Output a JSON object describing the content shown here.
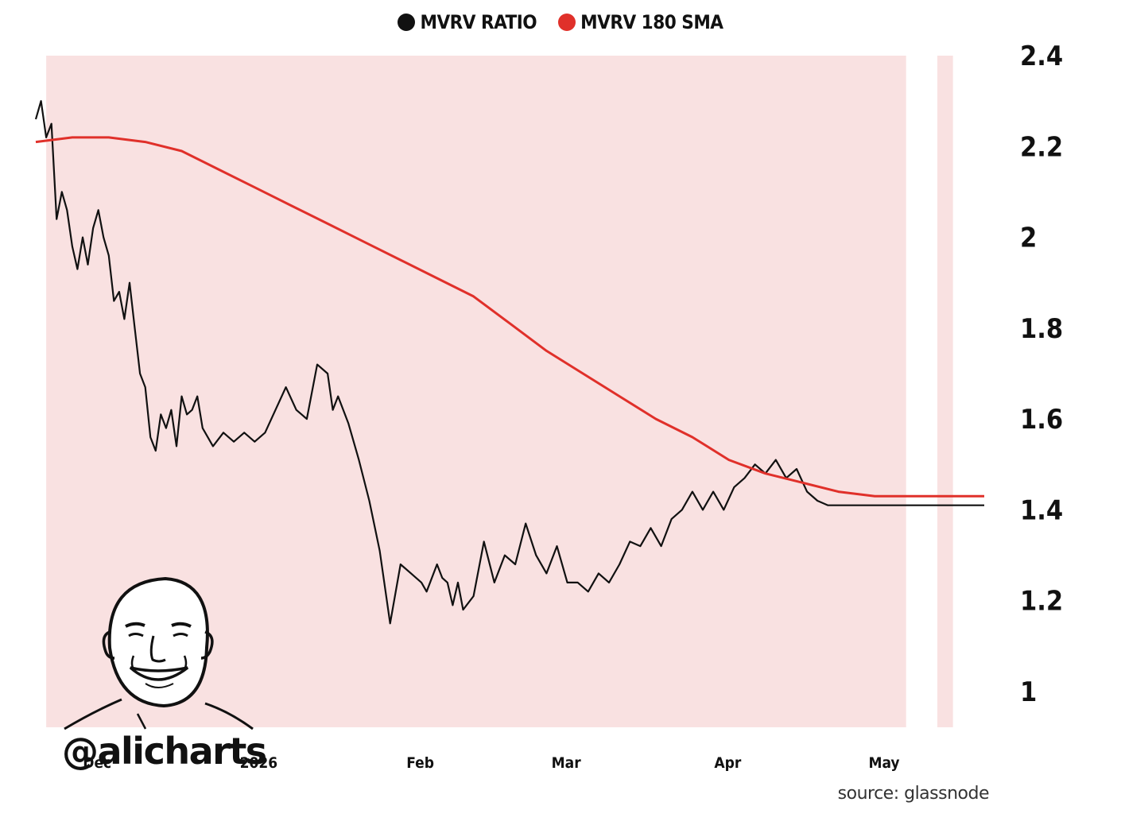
{
  "chart_data": {
    "type": "line",
    "legend": [
      {
        "label": "MVRV RATIO",
        "color": "#111111"
      },
      {
        "label": "MVRV 180 SMA",
        "color": "#e0302a"
      }
    ],
    "y_ticks": [
      "2.4",
      "2.2",
      "2",
      "1.8",
      "1.6",
      "1.4",
      "1.2",
      "1"
    ],
    "x_ticks": [
      "Dec",
      "2026",
      "Feb",
      "Mar",
      "Apr",
      "May"
    ],
    "ylim": [
      0.92,
      2.42
    ],
    "series": [
      {
        "name": "MVRV RATIO",
        "color": "#111111",
        "x": [
          "2025-11-18",
          "2025-11-19",
          "2025-11-20",
          "2025-11-21",
          "2025-11-22",
          "2025-11-23",
          "2025-11-24",
          "2025-11-25",
          "2025-11-26",
          "2025-11-27",
          "2025-11-28",
          "2025-11-29",
          "2025-11-30",
          "2025-12-01",
          "2025-12-02",
          "2025-12-03",
          "2025-12-04",
          "2025-12-05",
          "2025-12-06",
          "2025-12-07",
          "2025-12-08",
          "2025-12-09",
          "2025-12-10",
          "2025-12-11",
          "2025-12-12",
          "2025-12-13",
          "2025-12-14",
          "2025-12-15",
          "2025-12-16",
          "2025-12-17",
          "2025-12-18",
          "2025-12-19",
          "2025-12-20",
          "2025-12-22",
          "2025-12-24",
          "2025-12-26",
          "2025-12-28",
          "2025-12-30",
          "2026-01-01",
          "2026-01-03",
          "2026-01-05",
          "2026-01-07",
          "2026-01-09",
          "2026-01-11",
          "2026-01-13",
          "2026-01-14",
          "2026-01-15",
          "2026-01-17",
          "2026-01-19",
          "2026-01-21",
          "2026-01-23",
          "2026-01-25",
          "2026-01-27",
          "2026-01-29",
          "2026-01-31",
          "2026-02-01",
          "2026-02-03",
          "2026-02-04",
          "2026-02-05",
          "2026-02-06",
          "2026-02-07",
          "2026-02-08",
          "2026-02-10",
          "2026-02-12",
          "2026-02-14",
          "2026-02-16",
          "2026-02-18",
          "2026-02-20",
          "2026-02-22",
          "2026-02-24",
          "2026-02-26",
          "2026-02-28",
          "2026-03-02",
          "2026-03-04",
          "2026-03-06",
          "2026-03-08",
          "2026-03-10",
          "2026-03-12",
          "2026-03-14",
          "2026-03-16",
          "2026-03-18",
          "2026-03-20",
          "2026-03-22",
          "2026-03-24",
          "2026-03-26",
          "2026-03-28",
          "2026-03-30",
          "2026-04-01",
          "2026-04-03",
          "2026-04-05",
          "2026-04-07",
          "2026-04-09",
          "2026-04-11",
          "2026-04-13",
          "2026-04-15",
          "2026-04-17",
          "2026-04-19",
          "2026-04-21",
          "2026-04-23",
          "2026-04-25",
          "2026-04-27",
          "2026-04-29",
          "2026-05-01",
          "2026-05-03",
          "2026-05-05",
          "2026-05-07",
          "2026-05-09",
          "2026-05-11",
          "2026-05-13",
          "2026-05-15",
          "2026-05-17",
          "2026-05-19"
        ],
        "values": [
          2.26,
          2.3,
          2.22,
          2.25,
          2.04,
          2.1,
          2.06,
          1.98,
          1.93,
          2.0,
          1.94,
          2.02,
          2.06,
          2.0,
          1.96,
          1.86,
          1.88,
          1.82,
          1.9,
          1.8,
          1.7,
          1.67,
          1.56,
          1.53,
          1.61,
          1.58,
          1.62,
          1.54,
          1.65,
          1.61,
          1.62,
          1.65,
          1.58,
          1.54,
          1.57,
          1.55,
          1.57,
          1.55,
          1.57,
          1.62,
          1.67,
          1.62,
          1.6,
          1.72,
          1.7,
          1.62,
          1.65,
          1.59,
          1.51,
          1.42,
          1.31,
          1.15,
          1.28,
          1.26,
          1.24,
          1.22,
          1.28,
          1.25,
          1.24,
          1.19,
          1.24,
          1.18,
          1.21,
          1.33,
          1.24,
          1.3,
          1.28,
          1.37,
          1.3,
          1.26,
          1.32,
          1.24,
          1.24,
          1.22,
          1.26,
          1.24,
          1.28,
          1.33,
          1.32,
          1.36,
          1.32,
          1.38,
          1.4,
          1.44,
          1.4,
          1.44,
          1.4,
          1.45,
          1.47,
          1.5,
          1.48,
          1.51,
          1.47,
          1.49,
          1.44,
          1.42,
          1.41,
          1.41,
          1.41,
          1.41,
          1.41,
          1.41,
          1.41,
          1.41,
          1.41,
          1.41,
          1.41,
          1.41,
          1.41,
          1.41,
          1.41,
          1.41
        ]
      },
      {
        "name": "MVRV 180 SMA",
        "color": "#e0302a",
        "x": [
          "2025-11-18",
          "2025-11-25",
          "2025-12-02",
          "2025-12-09",
          "2025-12-16",
          "2025-12-23",
          "2025-12-30",
          "2026-01-06",
          "2026-01-13",
          "2026-01-20",
          "2026-01-27",
          "2026-02-03",
          "2026-02-10",
          "2026-02-17",
          "2026-02-24",
          "2026-03-03",
          "2026-03-10",
          "2026-03-17",
          "2026-03-24",
          "2026-03-31",
          "2026-04-07",
          "2026-04-14",
          "2026-04-21",
          "2026-04-28",
          "2026-05-05",
          "2026-05-12",
          "2026-05-19"
        ],
        "values": [
          2.21,
          2.22,
          2.22,
          2.21,
          2.19,
          2.15,
          2.11,
          2.07,
          2.03,
          1.99,
          1.95,
          1.91,
          1.87,
          1.81,
          1.75,
          1.7,
          1.65,
          1.6,
          1.56,
          1.51,
          1.48,
          1.46,
          1.44,
          1.43,
          1.43,
          1.43,
          1.43
        ]
      }
    ],
    "shaded_bands": [
      {
        "from": "2025-11-20",
        "to": "2026-05-04"
      },
      {
        "from": "2026-05-10",
        "to": "2026-05-13"
      }
    ]
  },
  "branding": {
    "handle": "@alicharts",
    "source": "source: glassnode"
  }
}
